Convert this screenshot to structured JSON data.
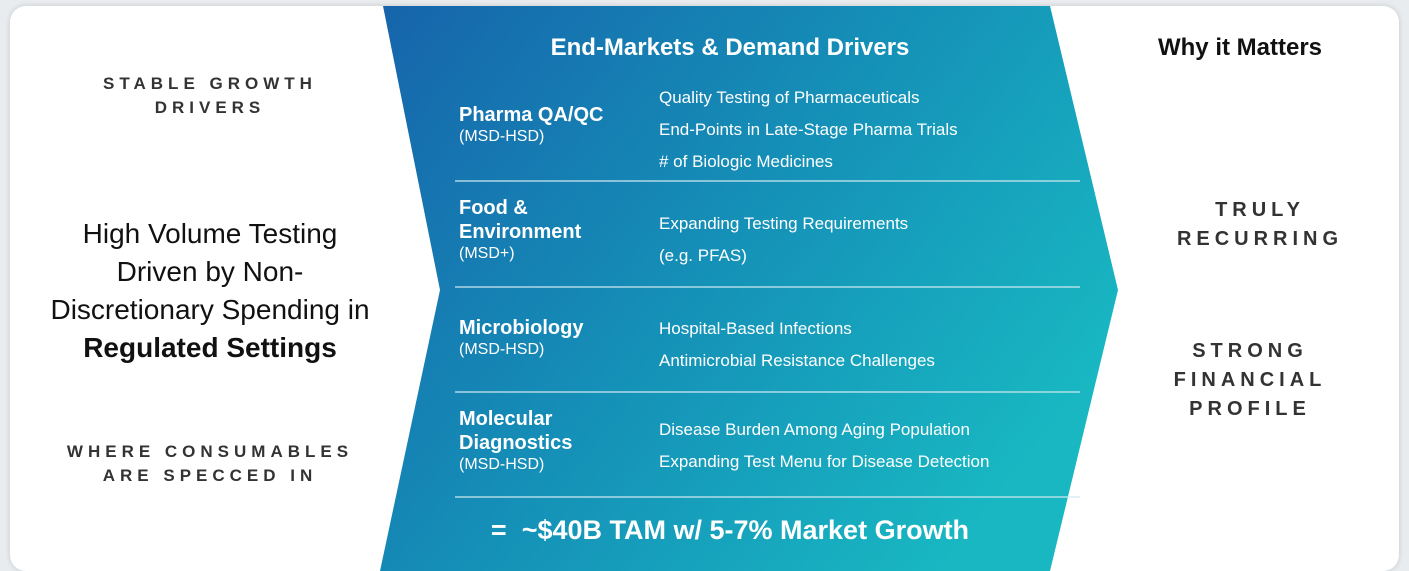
{
  "left": {
    "top_label": "STABLE GROWTH DRIVERS",
    "main_text": "High Volume Testing Driven by Non-Discretionary Spending in",
    "main_text_bold": "Regulated Settings",
    "bottom_label": "WHERE CONSUMABLES ARE SPECCED IN"
  },
  "center": {
    "title": "End-Markets & Demand Drivers",
    "rows": [
      {
        "name": "Pharma QA/QC",
        "sub": "(MSD-HSD)",
        "drivers": [
          "Quality Testing of Pharmaceuticals",
          "End-Points in Late-Stage Pharma Trials",
          "# of Biologic Medicines"
        ]
      },
      {
        "name": "Food & Environment",
        "sub": "(MSD+)",
        "drivers": [
          "Expanding Testing Requirements",
          "(e.g. PFAS)"
        ]
      },
      {
        "name": "Microbiology",
        "sub": "(MSD-HSD)",
        "drivers": [
          "Hospital-Based Infections",
          "Antimicrobial Resistance Challenges"
        ]
      },
      {
        "name": "Molecular Diagnostics",
        "sub": "(MSD-HSD)",
        "drivers": [
          "Disease Burden Among Aging Population",
          "Expanding Test Menu for Disease Detection"
        ]
      }
    ],
    "footer": "=  ~$40B TAM w/ 5-7% Market Growth"
  },
  "right": {
    "title": "Why it Matters",
    "points": [
      "TRULY RECURRING",
      "STRONG FINANCIAL PROFILE"
    ]
  }
}
